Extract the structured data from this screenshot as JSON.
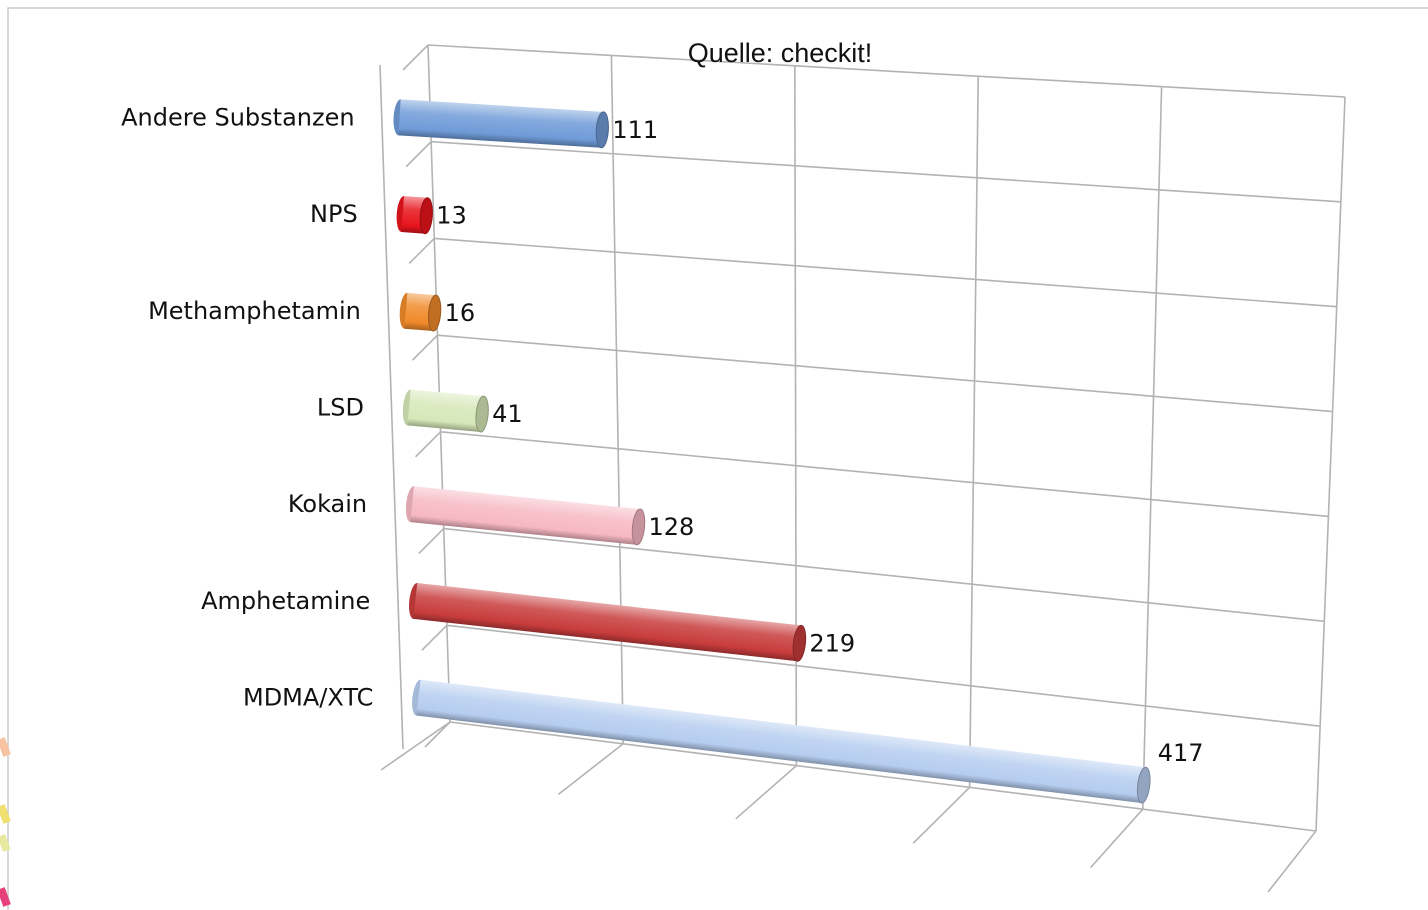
{
  "source_note": "Quelle: checkit!",
  "colors": {
    "grid": "#b3b3b3",
    "frame": "#cccccc",
    "text": "#111111"
  },
  "chart_data": {
    "type": "bar",
    "orientation": "horizontal",
    "style": "3d-cylinder",
    "title": "",
    "xlabel": "",
    "ylabel": "",
    "xlim": [
      0,
      500
    ],
    "grid": true,
    "legend": "none",
    "categories": [
      "Andere Substanzen",
      "NPS",
      "Methamphetamin",
      "LSD",
      "Kokain",
      "Amphetamine",
      "MDMA/XTC"
    ],
    "values": [
      111,
      13,
      16,
      41,
      128,
      219,
      417
    ],
    "value_labels": [
      "111",
      "13",
      "16",
      "41",
      "128",
      "219",
      "417"
    ],
    "bar_colors": [
      "#6f9bd8",
      "#e8141c",
      "#f08a2a",
      "#d6e8b8",
      "#f7b8c3",
      "#c83c3c",
      "#b6cdf0"
    ]
  }
}
